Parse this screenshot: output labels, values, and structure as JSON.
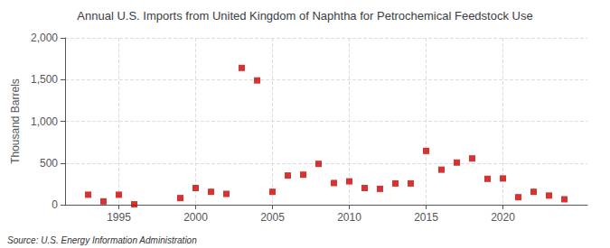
{
  "chart_data": {
    "type": "scatter",
    "title": "Annual U.S. Imports from United Kingdom of Naphtha for Petrochemical Feedstock Use",
    "ylabel": "Thousand Barrels",
    "annotations": [
      "Source: U.S. Energy Information Administration"
    ],
    "x": [
      1993,
      1994,
      1995,
      1996,
      1999,
      2000,
      2001,
      2002,
      2003,
      2004,
      2005,
      2006,
      2007,
      2008,
      2009,
      2010,
      2011,
      2012,
      2013,
      2014,
      2015,
      2016,
      2017,
      2018,
      2019,
      2020,
      2021,
      2022,
      2023,
      2024
    ],
    "values": [
      120,
      40,
      120,
      5,
      80,
      200,
      155,
      130,
      1640,
      1490,
      155,
      350,
      360,
      490,
      260,
      280,
      200,
      190,
      255,
      255,
      645,
      420,
      505,
      555,
      310,
      315,
      90,
      155,
      110,
      65
    ],
    "color": "#cc0000",
    "marker": "square",
    "xlim": [
      1991.5,
      2025.5
    ],
    "xticks": [
      1995,
      2000,
      2005,
      2010,
      2015,
      2020
    ],
    "ylim": [
      0,
      2000
    ],
    "yticks": [
      0,
      500,
      {
        "value": 1000,
        "label": "1,000"
      },
      {
        "value": 1500,
        "label": "1,500"
      },
      {
        "value": 2000,
        "label": "2,000"
      }
    ],
    "grid": true
  }
}
